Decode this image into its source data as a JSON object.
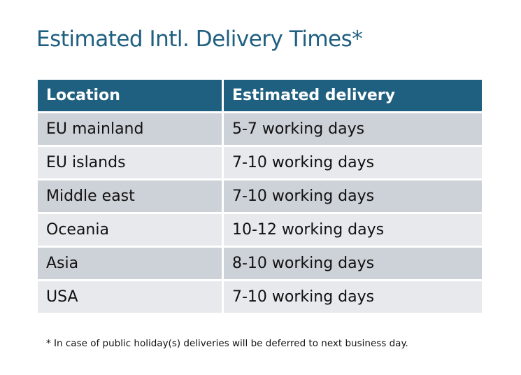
{
  "title": "Estimated Intl. Delivery Times*",
  "colors": {
    "header": "#1f6080",
    "row_dark": "#cdd1d8",
    "row_light": "#e7e9ec",
    "title": "#1f5f80"
  },
  "table": {
    "headers": [
      "Location",
      "Estimated delivery"
    ],
    "rows": [
      [
        "EU mainland",
        "5-7 working days"
      ],
      [
        "EU islands",
        "7-10 working days"
      ],
      [
        "Middle east",
        "7-10 working days"
      ],
      [
        "Oceania",
        "10-12 working days"
      ],
      [
        "Asia",
        "8-10 working days"
      ],
      [
        "USA",
        "7-10 working days"
      ]
    ]
  },
  "footnote": "* In case of public holiday(s) deliveries will be deferred to next business day."
}
